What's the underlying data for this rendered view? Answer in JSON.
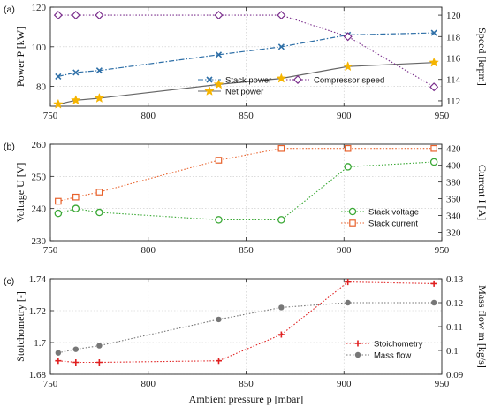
{
  "chart_data": [
    {
      "panel": "(a)",
      "type": "line",
      "xlim": [
        750,
        950
      ],
      "xticks": [
        750,
        800,
        850,
        900,
        950
      ],
      "grid": true,
      "legend_placement": "bottom-right",
      "left_axis": {
        "label": "Power P [kW]",
        "ylim": [
          70,
          120
        ],
        "ticks": [
          80,
          100,
          120
        ],
        "tick_labels": [
          "80",
          "100",
          "120"
        ]
      },
      "right_axis": {
        "label": "Speed [krpm]",
        "ylim": [
          111.5,
          120.75
        ],
        "ticks": [
          112,
          114,
          116,
          118,
          120
        ],
        "tick_labels": [
          "112",
          "114",
          "116",
          "118",
          "120"
        ]
      },
      "series": [
        {
          "name": "Stack power",
          "axis": "left",
          "color": "#2e6fa7",
          "marker": "x",
          "line": "dashdot",
          "x": [
            754,
            763,
            775,
            836,
            868,
            902,
            946
          ],
          "y": [
            85,
            87,
            88,
            96,
            100,
            106,
            107
          ]
        },
        {
          "name": "Net power",
          "axis": "left",
          "color": "#666666",
          "marker": "star",
          "marker_color": "#f5b400",
          "line": "solid",
          "x": [
            754,
            763,
            775,
            836,
            868,
            902,
            946
          ],
          "y": [
            71,
            73,
            74,
            81,
            84,
            90,
            92
          ]
        },
        {
          "name": "Compressor speed",
          "axis": "right",
          "color": "#7a2e8c",
          "marker": "diamond",
          "line": "dotted",
          "x": [
            754,
            763,
            775,
            836,
            868,
            902,
            946
          ],
          "y": [
            120,
            120,
            120,
            120,
            120,
            118,
            113.3
          ]
        }
      ]
    },
    {
      "panel": "(b)",
      "type": "line",
      "xlim": [
        750,
        950
      ],
      "xticks": [
        750,
        800,
        850,
        900,
        950
      ],
      "grid": true,
      "legend_placement": "bottom-right",
      "left_axis": {
        "label": "Voltage U [V]",
        "ylim": [
          230,
          260
        ],
        "ticks": [
          230,
          240,
          250,
          260
        ],
        "tick_labels": [
          "230",
          "240",
          "250",
          "260"
        ]
      },
      "right_axis": {
        "label": "Current I [A]",
        "ylim": [
          310,
          425
        ],
        "ticks": [
          320,
          340,
          360,
          380,
          400,
          420
        ],
        "tick_labels": [
          "320",
          "340",
          "360",
          "380",
          "400",
          "420"
        ]
      },
      "series": [
        {
          "name": "Stack voltage",
          "axis": "left",
          "color": "#3aa835",
          "marker": "circle",
          "line": "dotted",
          "x": [
            754,
            763,
            775,
            836,
            868,
            902,
            946
          ],
          "y": [
            238.5,
            240,
            238.8,
            236.5,
            236.5,
            253,
            254.5
          ]
        },
        {
          "name": "Stack current",
          "axis": "right",
          "color": "#e8622c",
          "marker": "square",
          "line": "dotted",
          "x": [
            754,
            763,
            775,
            836,
            868,
            902,
            946
          ],
          "y": [
            357,
            362,
            368,
            406,
            420,
            420,
            420
          ]
        }
      ]
    },
    {
      "panel": "(c)",
      "type": "line",
      "xlim": [
        750,
        950
      ],
      "xticks": [
        750,
        800,
        850,
        900,
        950
      ],
      "xtick_labels": [
        "750",
        "800",
        "850",
        "900",
        "950"
      ],
      "xlabel": "Ambient pressure p [mbar]",
      "grid": true,
      "legend_placement": "bottom-right",
      "left_axis": {
        "label": "Stoichometry [-]",
        "ylim": [
          1.68,
          1.74
        ],
        "ticks": [
          1.68,
          1.7,
          1.72,
          1.74
        ],
        "tick_labels": [
          "1.68",
          "1.7",
          "1.72",
          "1.74"
        ]
      },
      "right_axis": {
        "label": "Mass flow m [kg/s]",
        "ylim": [
          0.09,
          0.13
        ],
        "ticks": [
          0.09,
          0.1,
          0.11,
          0.12,
          0.13
        ],
        "tick_labels": [
          "0.09",
          "0.1",
          "0.11",
          "0.12",
          "0.13"
        ]
      },
      "series": [
        {
          "name": "Stoichometry",
          "axis": "left",
          "color": "#e02020",
          "marker": "plus",
          "line": "dotted",
          "x": [
            754,
            763,
            775,
            836,
            868,
            902,
            946
          ],
          "y": [
            1.6885,
            1.6875,
            1.6875,
            1.6885,
            1.705,
            1.738,
            1.737
          ]
        },
        {
          "name": "Mass flow",
          "axis": "right",
          "color": "#777777",
          "marker": "dot",
          "line": "dotted",
          "x": [
            754,
            763,
            775,
            836,
            868,
            902,
            946
          ],
          "y": [
            0.099,
            0.1005,
            0.102,
            0.113,
            0.118,
            0.12,
            0.12
          ]
        }
      ]
    }
  ]
}
